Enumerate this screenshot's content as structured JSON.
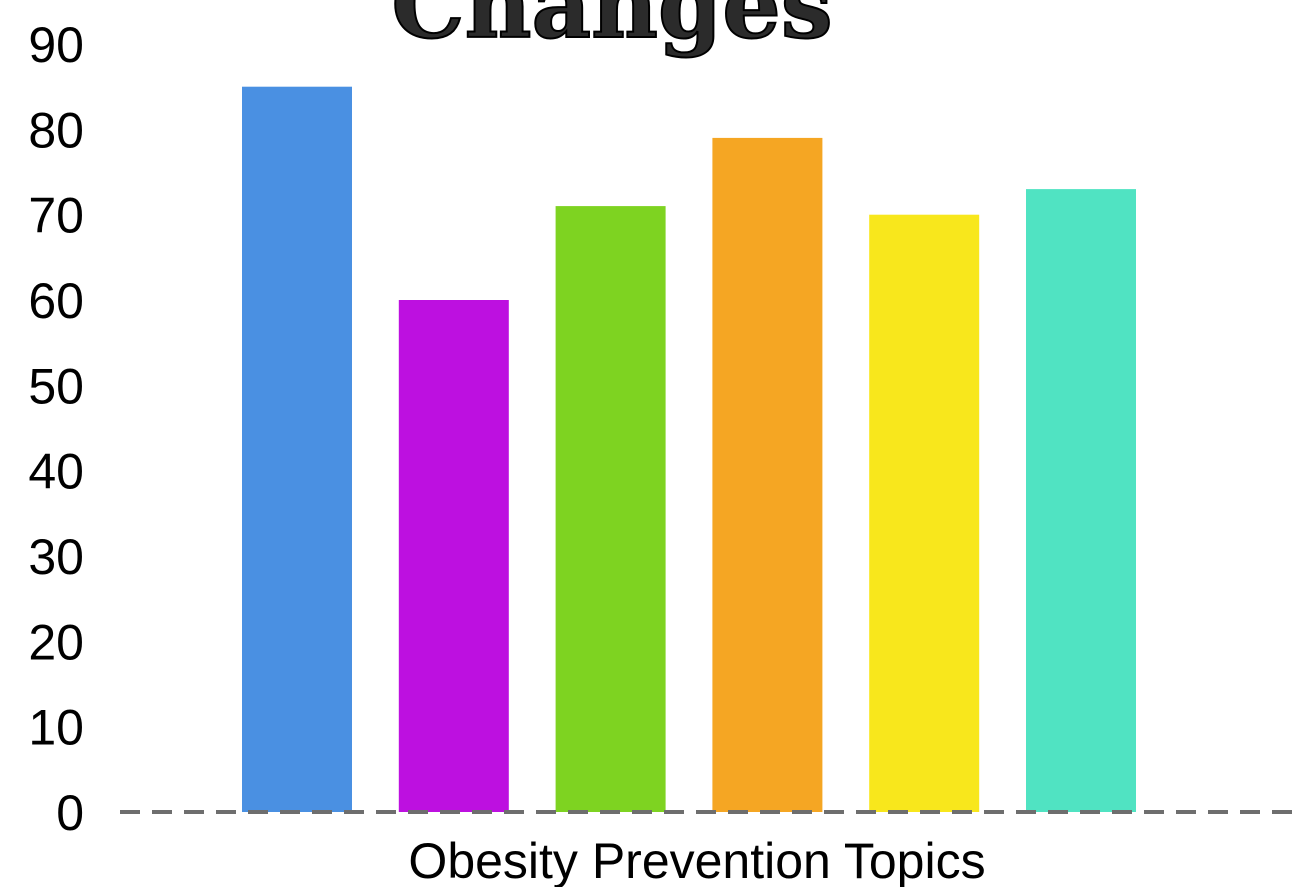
{
  "chart_data": {
    "type": "bar",
    "title": "Changes",
    "xlabel": "Obesity Prevention Topics",
    "ylabel": "",
    "ylim": [
      0,
      90
    ],
    "yticks": [
      0,
      10,
      20,
      30,
      40,
      50,
      60,
      70,
      80,
      90
    ],
    "grid": false,
    "baseline_style": "dashed",
    "series": [
      {
        "values": [
          85,
          60,
          71,
          79,
          70,
          73
        ]
      }
    ],
    "bar_colors": [
      "#4a90e2",
      "#bd10e0",
      "#7ed321",
      "#f5a623",
      "#f8e71c",
      "#50e3c2"
    ],
    "colors": {
      "baseline": "#6e6e6e",
      "text": "#000000"
    }
  }
}
